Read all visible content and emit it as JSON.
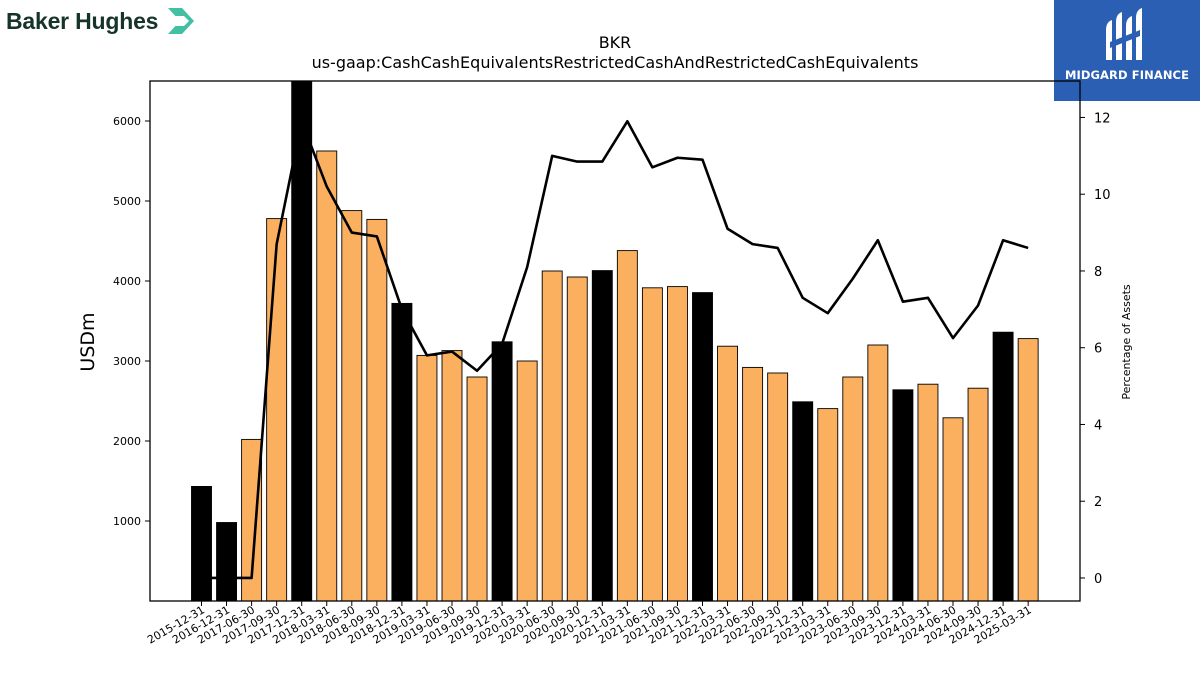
{
  "branding": {
    "left_logo_text": "Baker Hughes",
    "right_logo_text": "MIDGARD FINANCE",
    "right_logo_bg": "#2b5fb3"
  },
  "colors": {
    "bar_primary": "#fbb060",
    "bar_highlight": "#000000",
    "line": "#000000"
  },
  "chart_data": {
    "type": "bar",
    "title": "BKR",
    "subtitle": "us-gaap:CashCashEquivalentsRestrictedCashAndRestrictedCashEquivalents",
    "ylabel": "USDm",
    "y2label": "Percentage of Assets",
    "ylim": [
      0,
      6500
    ],
    "y2lim": [
      -0.6,
      12.95
    ],
    "yticks": [
      1000,
      2000,
      3000,
      4000,
      5000,
      6000
    ],
    "y2ticks": [
      0,
      2,
      4,
      6,
      8,
      10,
      12
    ],
    "categories": [
      "2015-12-31",
      "2016-12-31",
      "2017-06-30",
      "2017-09-30",
      "2017-12-31",
      "2018-03-31",
      "2018-06-30",
      "2018-09-30",
      "2018-12-31",
      "2019-03-31",
      "2019-06-30",
      "2019-09-30",
      "2019-12-31",
      "2020-03-31",
      "2020-06-30",
      "2020-09-30",
      "2020-12-31",
      "2021-03-31",
      "2021-06-30",
      "2021-09-30",
      "2021-12-31",
      "2022-03-31",
      "2022-06-30",
      "2022-09-30",
      "2022-12-31",
      "2023-03-31",
      "2023-06-30",
      "2023-09-30",
      "2023-12-31",
      "2024-03-31",
      "2024-06-30",
      "2024-09-30",
      "2024-12-31",
      "2025-03-31"
    ],
    "series": [
      {
        "type": "bar",
        "values": [
          1432,
          981,
          2020,
          4780,
          6600,
          5625,
          4880,
          4770,
          3720,
          3070,
          3130,
          2800,
          3240,
          3000,
          4125,
          4050,
          4130,
          4380,
          3915,
          3930,
          3855,
          3185,
          2920,
          2850,
          2490,
          2405,
          2800,
          3200,
          2640,
          2710,
          2290,
          2660,
          3360,
          3280
        ],
        "highlight": [
          true,
          true,
          false,
          false,
          true,
          false,
          false,
          false,
          true,
          false,
          false,
          false,
          true,
          false,
          false,
          false,
          true,
          false,
          false,
          false,
          true,
          false,
          false,
          false,
          true,
          false,
          false,
          false,
          true,
          false,
          false,
          false,
          true,
          false
        ]
      },
      {
        "type": "line",
        "axis": "right",
        "values": [
          0.0,
          0.0,
          0.0,
          8.7,
          11.9,
          10.2,
          9.0,
          8.9,
          7.0,
          5.8,
          5.9,
          5.4,
          6.1,
          8.1,
          11.0,
          10.85,
          10.85,
          11.9,
          10.7,
          10.95,
          10.9,
          9.1,
          8.7,
          8.6,
          7.3,
          6.9,
          7.8,
          8.8,
          7.2,
          7.3,
          6.25,
          7.1,
          8.8,
          8.6
        ]
      }
    ]
  }
}
